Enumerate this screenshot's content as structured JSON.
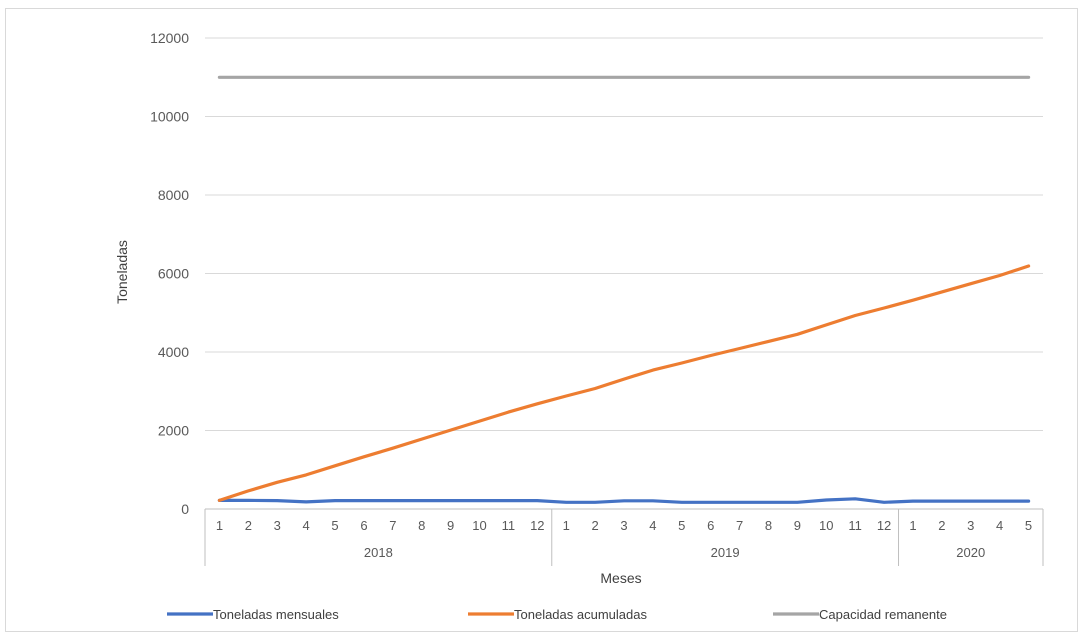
{
  "chart_data": {
    "type": "line",
    "title": "",
    "xlabel": "Meses",
    "ylabel": "Toneladas",
    "ylim": [
      0,
      12000
    ],
    "yticks": [
      "0",
      "2000",
      "4000",
      "6000",
      "8000",
      "10000",
      "12000"
    ],
    "grid": true,
    "legend_position": "bottom",
    "categories": [
      "1",
      "2",
      "3",
      "4",
      "5",
      "6",
      "7",
      "8",
      "9",
      "10",
      "11",
      "12",
      "1",
      "2",
      "3",
      "4",
      "5",
      "6",
      "7",
      "8",
      "9",
      "10",
      "11",
      "12",
      "1",
      "2",
      "3",
      "4",
      "5"
    ],
    "groups": [
      {
        "label": "2018",
        "count": 12
      },
      {
        "label": "2019",
        "count": 12
      },
      {
        "label": "2020",
        "count": 5
      }
    ],
    "series": [
      {
        "name": "Toneladas mensuales",
        "color": "#4472c4",
        "values": [
          220,
          220,
          215,
          180,
          215,
          215,
          215,
          215,
          215,
          215,
          215,
          215,
          170,
          170,
          210,
          210,
          170,
          170,
          170,
          170,
          170,
          230,
          260,
          170,
          200,
          200,
          200,
          200,
          200
        ]
      },
      {
        "name": "Toneladas acumuladas",
        "color": "#ed7d31",
        "values": [
          220,
          460,
          680,
          870,
          1100,
          1330,
          1550,
          1780,
          2010,
          2240,
          2470,
          2680,
          2880,
          3070,
          3310,
          3540,
          3720,
          3910,
          4090,
          4270,
          4450,
          4690,
          4930,
          5120,
          5320,
          5530,
          5740,
          5950,
          6190
        ]
      },
      {
        "name": "Capacidad remanente",
        "color": "#a5a5a5",
        "values": [
          11000,
          11000,
          11000,
          11000,
          11000,
          11000,
          11000,
          11000,
          11000,
          11000,
          11000,
          11000,
          11000,
          11000,
          11000,
          11000,
          11000,
          11000,
          11000,
          11000,
          11000,
          11000,
          11000,
          11000,
          11000,
          11000,
          11000,
          11000,
          11000
        ]
      }
    ]
  }
}
